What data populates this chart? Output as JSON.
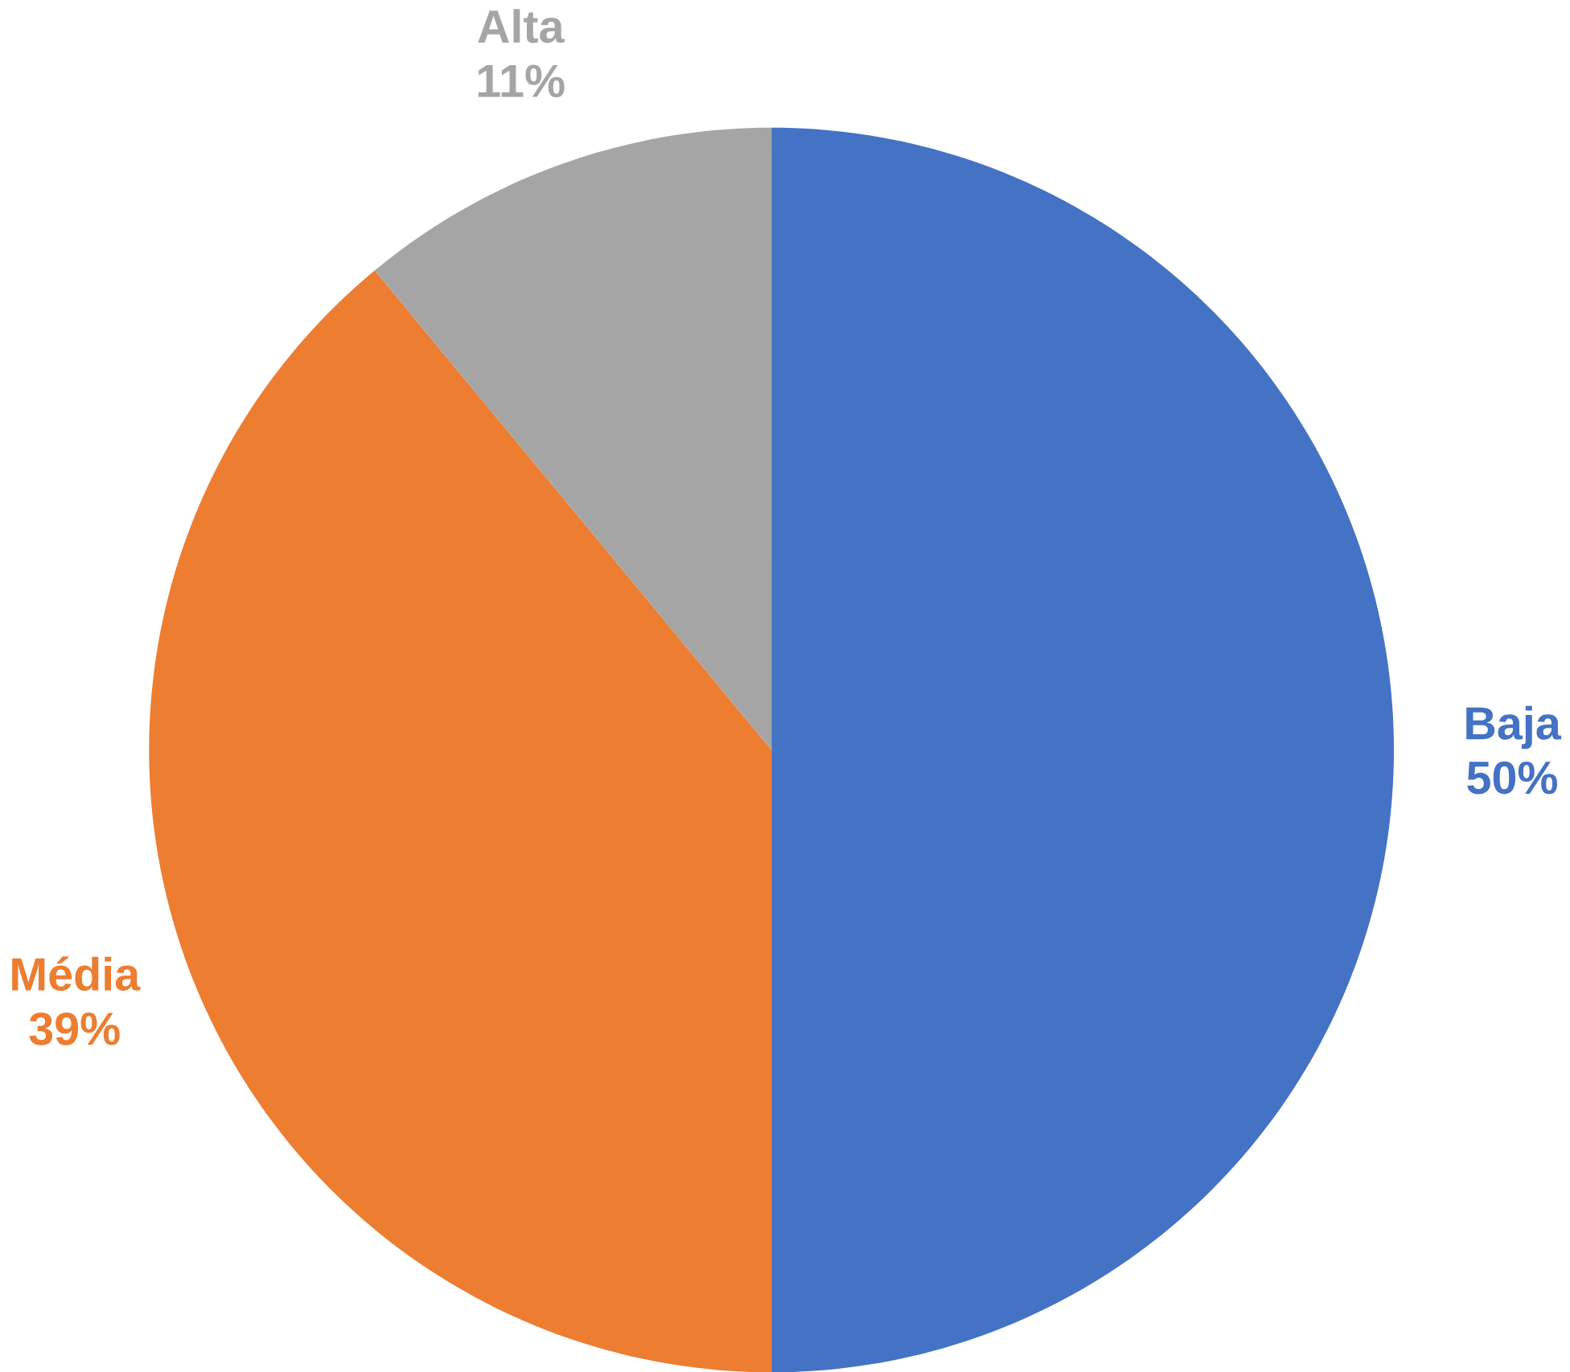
{
  "chart_data": {
    "type": "pie",
    "categories": [
      "Baja",
      "Média",
      "Alta"
    ],
    "values": [
      50,
      39,
      11
    ],
    "colors": [
      "#4472c4",
      "#ed7d31",
      "#a5a5a5"
    ],
    "value_labels": [
      "50%",
      "39%",
      "11%"
    ]
  }
}
